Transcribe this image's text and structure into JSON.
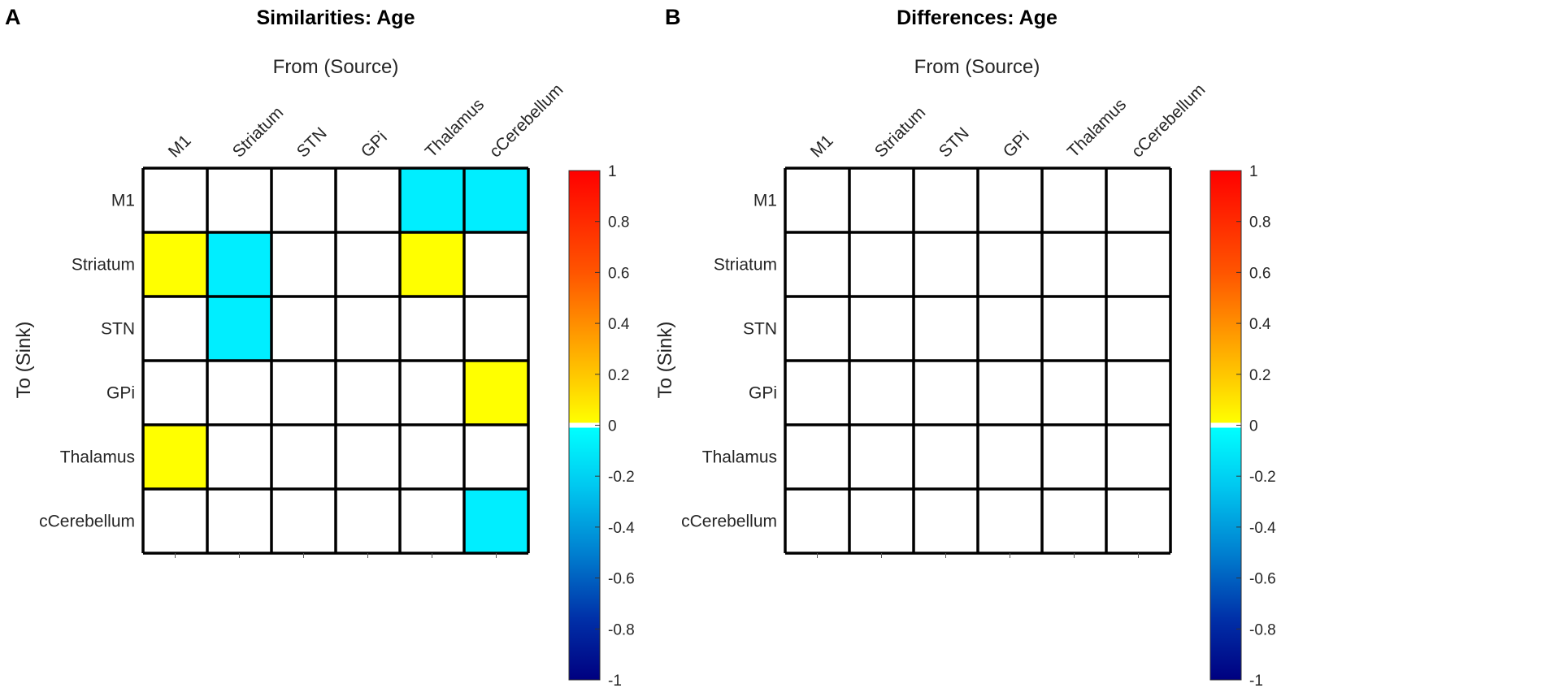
{
  "colors": {
    "positive_small": "#ffff00",
    "negative_small": "#00eeff",
    "empty": "#ffffff",
    "grid": "#000000"
  },
  "chart_data": [
    {
      "type": "heatmap",
      "panel_letter": "A",
      "title": "Similarities: Age",
      "xlabel": "From (Source)",
      "ylabel": "To (Sink)",
      "x_categories": [
        "M1",
        "Striatum",
        "STN",
        "GPi",
        "Thalamus",
        "cCerebellum"
      ],
      "y_categories": [
        "M1",
        "Striatum",
        "STN",
        "GPi",
        "Thalamus",
        "cCerebellum"
      ],
      "values": [
        [
          0,
          0,
          0,
          0,
          -0.2,
          -0.2
        ],
        [
          0.2,
          -0.2,
          0,
          0,
          0.2,
          0
        ],
        [
          0,
          -0.2,
          0,
          0,
          0,
          0
        ],
        [
          0,
          0,
          0,
          0,
          0,
          0.2
        ],
        [
          0.2,
          0,
          0,
          0,
          0,
          0
        ],
        [
          0,
          0,
          0,
          0,
          0,
          -0.2
        ]
      ],
      "colorbar": {
        "range": [
          -1,
          1
        ],
        "ticks": [
          "1",
          "0.8",
          "0.6",
          "0.4",
          "0.2",
          "0",
          "-0.2",
          "-0.4",
          "-0.6",
          "-0.8",
          "-1"
        ]
      }
    },
    {
      "type": "heatmap",
      "panel_letter": "B",
      "title": "Differences: Age",
      "xlabel": "From (Source)",
      "ylabel": "To (Sink)",
      "x_categories": [
        "M1",
        "Striatum",
        "STN",
        "GPi",
        "Thalamus",
        "cCerebellum"
      ],
      "y_categories": [
        "M1",
        "Striatum",
        "STN",
        "GPi",
        "Thalamus",
        "cCerebellum"
      ],
      "values": [
        [
          0,
          0,
          0,
          0,
          0,
          0
        ],
        [
          0,
          0,
          0,
          0,
          0,
          0
        ],
        [
          0,
          0,
          0,
          0,
          0,
          0
        ],
        [
          0,
          0,
          0,
          0,
          0,
          0
        ],
        [
          0,
          0,
          0,
          0,
          0,
          0
        ],
        [
          0,
          0,
          0,
          0,
          0,
          0
        ]
      ],
      "colorbar": {
        "range": [
          -1,
          1
        ],
        "ticks": [
          "1",
          "0.8",
          "0.6",
          "0.4",
          "0.2",
          "0",
          "-0.2",
          "-0.4",
          "-0.6",
          "-0.8",
          "-1"
        ]
      }
    }
  ]
}
